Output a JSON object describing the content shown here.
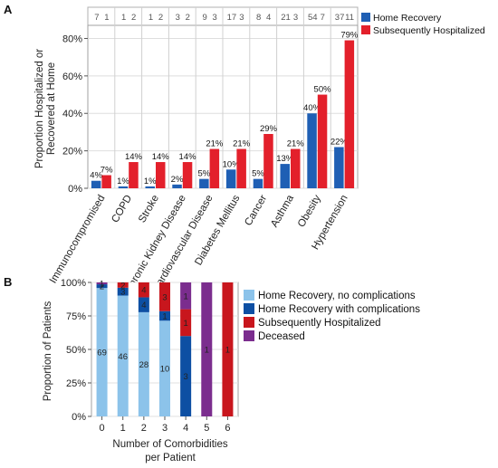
{
  "panel_a": {
    "letter": "A",
    "ylabel_line1": "Proportion Hospitalized or",
    "ylabel_line2": "Recovered at Home",
    "legend": [
      "Home Recovery",
      "Subsequently Hospitalized"
    ]
  },
  "panel_b": {
    "letter": "B",
    "ylabel": "Proportion of Patients",
    "xlabel_line1": "Number of Comorbidities",
    "xlabel_line2": "per Patient",
    "legend": [
      "Home Recovery, no complications",
      "Home Recovery with complications",
      "Subsequently Hospitalized",
      "Deceased"
    ]
  },
  "colors": {
    "home_recovery": "#1f5fb4",
    "hospitalized": "#e3202b",
    "no_complications": "#8cc3ea",
    "with_complications": "#0d4fa3",
    "sub_hospitalized": "#c8161d",
    "deceased": "#7b2d8e"
  },
  "chart_data": [
    {
      "type": "bar",
      "categories": [
        "Immunocompromised",
        "COPD",
        "Stroke",
        "Chronic Kidney Disease",
        "Cardiovascular Disease",
        "Diabetes Mellitus",
        "Cancer",
        "Asthma",
        "Obesity",
        "Hypertension"
      ],
      "series": [
        {
          "name": "Home Recovery",
          "values": [
            4,
            1,
            1,
            2,
            5,
            10,
            5,
            13,
            40,
            22
          ],
          "labels": [
            "4%",
            "1%",
            "1%",
            "2%",
            "5%",
            "10%",
            "5%",
            "13%",
            "40%",
            "22%"
          ],
          "counts": [
            "7",
            "1",
            "1",
            "3",
            "9",
            "17",
            "8",
            "21",
            "54",
            "37"
          ]
        },
        {
          "name": "Subsequently Hospitalized",
          "values": [
            7,
            14,
            14,
            14,
            21,
            21,
            29,
            21,
            50,
            79
          ],
          "labels": [
            "7%",
            "14%",
            "14%",
            "14%",
            "21%",
            "21%",
            "29%",
            "21%",
            "50%",
            "79%"
          ],
          "counts": [
            "1",
            "2",
            "2",
            "2",
            "3",
            "3",
            "4",
            "3",
            "7",
            "11"
          ]
        }
      ],
      "yticks": [
        "0%",
        "20%",
        "40%",
        "60%",
        "80%"
      ],
      "ylim": [
        0,
        87
      ]
    },
    {
      "type": "bar",
      "stacked": true,
      "categories": [
        "0",
        "1",
        "2",
        "3",
        "4",
        "5",
        "6"
      ],
      "yticks": [
        "0%",
        "25%",
        "50%",
        "75%",
        "100%"
      ],
      "ylim": [
        0,
        100
      ],
      "series": [
        {
          "name": "Home Recovery, no complications",
          "counts": [
            69,
            46,
            28,
            10,
            0,
            0,
            0
          ]
        },
        {
          "name": "Home Recovery with complications",
          "counts": [
            2,
            3,
            4,
            1,
            3,
            0,
            0
          ]
        },
        {
          "name": "Subsequently Hospitalized",
          "counts": [
            0,
            2,
            4,
            3,
            1,
            0,
            1
          ]
        },
        {
          "name": "Deceased",
          "counts": [
            1,
            0,
            0,
            0,
            1,
            1,
            0
          ]
        }
      ]
    }
  ]
}
